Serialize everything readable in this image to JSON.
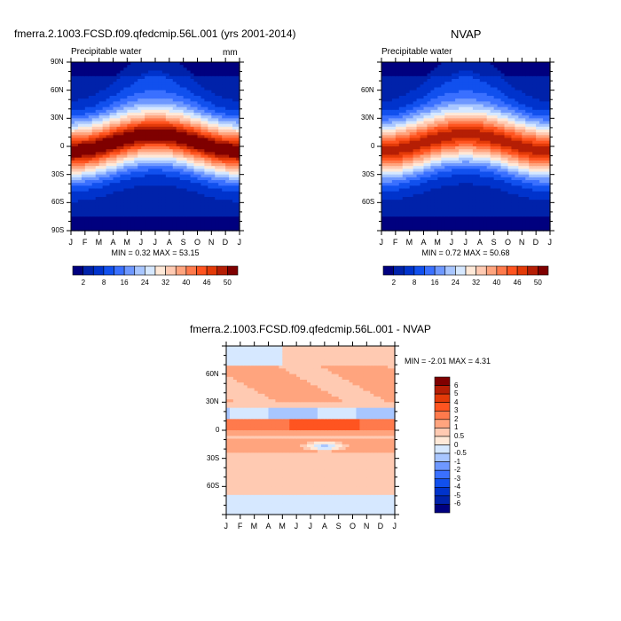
{
  "chart_data": [
    {
      "type": "heatmap",
      "id": "p1",
      "title": "fmerra.2.1003.FCSD.f09.qfedcmip.56L.001 (yrs 2001-2014)",
      "left_label": "Precipitable water",
      "units": "mm",
      "x_ticks": [
        "J",
        "F",
        "M",
        "A",
        "M",
        "J",
        "J",
        "A",
        "S",
        "O",
        "N",
        "D",
        "J"
      ],
      "y_ticks": [
        "90N",
        "60N",
        "30N",
        "0",
        "30S",
        "60S",
        "90S"
      ],
      "y_values": [
        90,
        60,
        30,
        0,
        -30,
        -60,
        -90
      ],
      "stats": "MIN =   0.32 MAX =   53.15",
      "min": 0.32,
      "max": 53.15,
      "levels": [
        2,
        4,
        8,
        12,
        16,
        20,
        24,
        28,
        32,
        36,
        40,
        43,
        46,
        48,
        50
      ],
      "colorbar_labels": [
        "2",
        "8",
        "16",
        "24",
        "32",
        "40",
        "46",
        "50"
      ]
    },
    {
      "type": "heatmap",
      "id": "p2",
      "title": "NVAP",
      "left_label": "Precipitable water",
      "x_ticks": [
        "J",
        "F",
        "M",
        "A",
        "M",
        "J",
        "J",
        "A",
        "S",
        "O",
        "N",
        "D",
        "J"
      ],
      "y_ticks": [
        "60N",
        "30N",
        "0",
        "30S",
        "60S"
      ],
      "y_values": [
        60,
        30,
        0,
        -30,
        -60
      ],
      "stats": "MIN =   0.72 MAX =   50.68",
      "min": 0.72,
      "max": 50.68,
      "levels": [
        2,
        4,
        8,
        12,
        16,
        20,
        24,
        28,
        32,
        36,
        40,
        43,
        46,
        48,
        50
      ],
      "colorbar_labels": [
        "2",
        "8",
        "16",
        "24",
        "32",
        "40",
        "46",
        "50"
      ]
    },
    {
      "type": "heatmap",
      "id": "p3",
      "title": "fmerra.2.1003.FCSD.f09.qfedcmip.56L.001 - NVAP",
      "x_ticks": [
        "J",
        "F",
        "M",
        "A",
        "M",
        "J",
        "J",
        "A",
        "S",
        "O",
        "N",
        "D",
        "J"
      ],
      "y_ticks": [
        "60N",
        "30N",
        "0",
        "30S",
        "60S"
      ],
      "y_values": [
        60,
        30,
        0,
        -30,
        -60
      ],
      "stats": "MIN =  -2.01 MAX =    4.31",
      "min": -2.01,
      "max": 4.31,
      "levels": [
        -6,
        -5,
        -4,
        -3,
        -2,
        -1,
        -0.5,
        0,
        0.5,
        1,
        2,
        3,
        4,
        5,
        6
      ],
      "colorbar_labels": [
        "6",
        "5",
        "4",
        "3",
        "2",
        "1",
        "0.5",
        "0",
        "-0.5",
        "-1",
        "-2",
        "-3",
        "-4",
        "-5",
        "-6"
      ]
    }
  ],
  "palette": [
    "#00007f",
    "#0022aa",
    "#0033cc",
    "#1150ee",
    "#3a70ff",
    "#6e98ff",
    "#a8c6ff",
    "#d6e8ff",
    "#ffe9d8",
    "#ffcab2",
    "#ffa47e",
    "#ff7a4c",
    "#ff5420",
    "#e33a08",
    "#b51e05",
    "#7f0000"
  ]
}
